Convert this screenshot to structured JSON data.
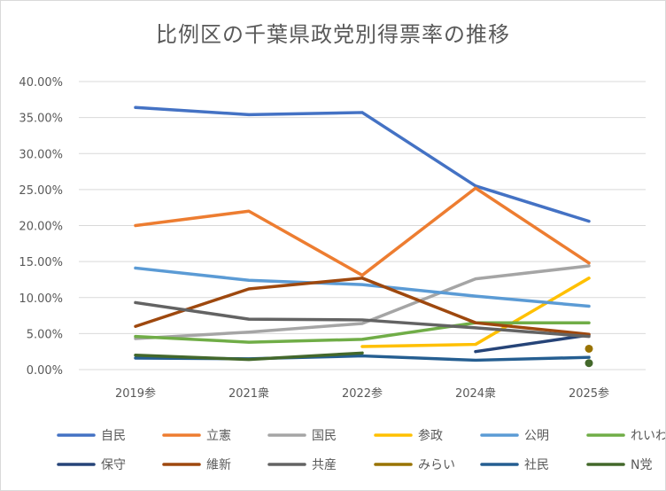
{
  "title": "比例区の千葉県政党別得票率の推移",
  "chart_data": {
    "type": "line",
    "title": "比例区の千葉県政党別得票率の推移",
    "xlabel": "",
    "ylabel": "",
    "categories": [
      "2019参",
      "2021衆",
      "2022参",
      "2024衆",
      "2025参"
    ],
    "y_tick_labels": [
      "0.00%",
      "5.00%",
      "10.00%",
      "15.00%",
      "20.00%",
      "25.00%",
      "30.00%",
      "35.00%",
      "40.00%"
    ],
    "ylim": [
      0,
      40
    ],
    "grid": true,
    "legend_position": "bottom",
    "series": [
      {
        "name": "自民",
        "color": "#4472C4",
        "values": [
          36.4,
          35.4,
          35.7,
          25.5,
          20.6
        ]
      },
      {
        "name": "立憲",
        "color": "#ED7D31",
        "values": [
          20.0,
          22.0,
          13.1,
          25.2,
          14.8
        ]
      },
      {
        "name": "国民",
        "color": "#A5A5A5",
        "values": [
          4.3,
          5.2,
          6.4,
          12.6,
          14.4
        ]
      },
      {
        "name": "参政",
        "color": "#FFC000",
        "values": [
          null,
          null,
          3.2,
          3.5,
          12.7
        ]
      },
      {
        "name": "公明",
        "color": "#5B9BD5",
        "values": [
          14.1,
          12.4,
          11.8,
          10.2,
          8.8
        ]
      },
      {
        "name": "れいわ",
        "color": "#70AD47",
        "values": [
          4.6,
          3.8,
          4.2,
          6.5,
          6.5
        ]
      },
      {
        "name": "保守",
        "color": "#264478",
        "values": [
          null,
          null,
          null,
          2.5,
          4.8
        ]
      },
      {
        "name": "維新",
        "color": "#9E480E",
        "values": [
          6.0,
          11.2,
          12.7,
          6.5,
          4.9
        ]
      },
      {
        "name": "共産",
        "color": "#636363",
        "values": [
          9.3,
          7.0,
          6.9,
          5.8,
          4.6
        ]
      },
      {
        "name": "みらい",
        "color": "#997300",
        "values": [
          null,
          null,
          null,
          null,
          2.9
        ]
      },
      {
        "name": "社民",
        "color": "#255E91",
        "values": [
          1.6,
          1.5,
          1.9,
          1.3,
          1.7
        ]
      },
      {
        "name": "N党",
        "color": "#43682B",
        "values": [
          2.0,
          1.4,
          2.3,
          null,
          0.9
        ]
      }
    ]
  }
}
